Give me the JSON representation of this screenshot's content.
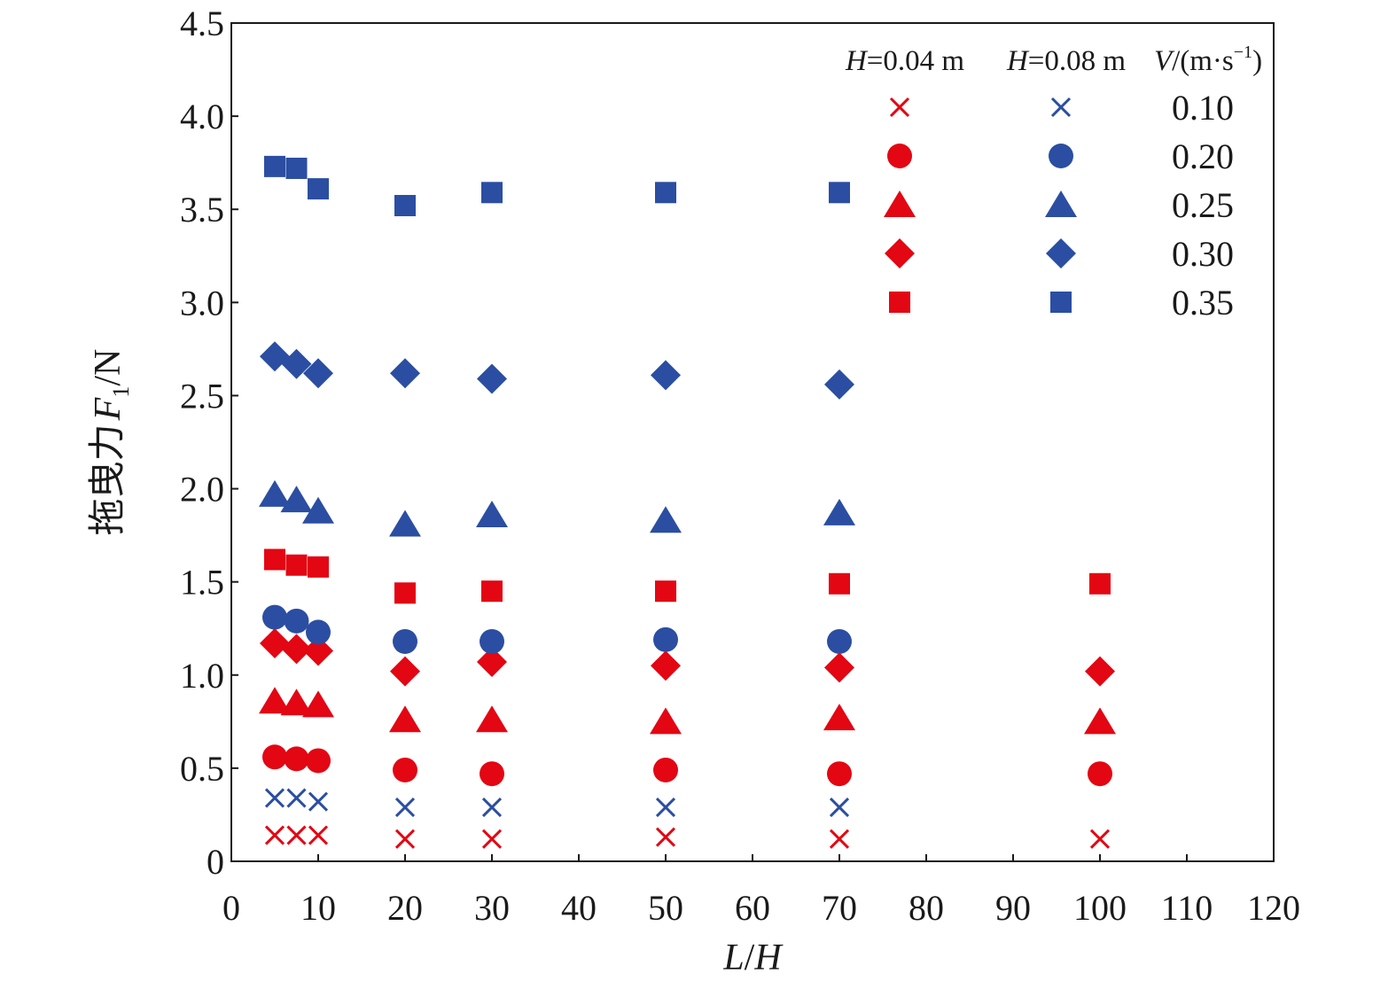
{
  "chart_data": {
    "type": "scatter",
    "xlabel_parts": [
      "L",
      "/",
      "H"
    ],
    "ylabel_parts": [
      "拖曳力",
      "F",
      "1",
      "/N"
    ],
    "xlim": [
      0,
      120
    ],
    "ylim": [
      0,
      4.5
    ],
    "x_ticks": [
      "0",
      "10",
      "20",
      "30",
      "40",
      "50",
      "60",
      "70",
      "80",
      "90",
      "100",
      "110",
      "120"
    ],
    "y_ticks": [
      "0",
      "0.5",
      "1.0",
      "1.5",
      "2.0",
      "2.5",
      "3.0",
      "3.5",
      "4.0",
      "4.5"
    ],
    "grid": false,
    "legend_position": "top-right",
    "legend": {
      "group_headers": [
        {
          "italic": "H",
          "text": "=0.04 m",
          "color": "#e30613"
        },
        {
          "italic": "H",
          "text": "=0.08 m",
          "color": "#2b4ea2"
        },
        {
          "italic": "V",
          "text": "/(m·s",
          "sup": "−1",
          "tail": ")",
          "color": "#1a1a1a"
        }
      ],
      "velocities": [
        "0.10",
        "0.20",
        "0.25",
        "0.30",
        "0.35"
      ]
    },
    "colors": {
      "H_0.04": "#e30613",
      "H_0.08": "#2b4ea2"
    },
    "markers": {
      "0.10": "cross",
      "0.20": "circle",
      "0.25": "triangle",
      "0.30": "diamond",
      "0.35": "square"
    },
    "series": [
      {
        "H": "0.04",
        "V": "0.10",
        "x": [
          5,
          7.5,
          10,
          20,
          30,
          50,
          70,
          100
        ],
        "y": [
          0.14,
          0.14,
          0.14,
          0.12,
          0.12,
          0.13,
          0.12,
          0.12
        ]
      },
      {
        "H": "0.04",
        "V": "0.20",
        "x": [
          5,
          7.5,
          10,
          20,
          30,
          50,
          70,
          100
        ],
        "y": [
          0.56,
          0.55,
          0.54,
          0.49,
          0.47,
          0.49,
          0.47,
          0.47
        ]
      },
      {
        "H": "0.04",
        "V": "0.25",
        "x": [
          5,
          7.5,
          10,
          20,
          30,
          50,
          70,
          100
        ],
        "y": [
          0.86,
          0.85,
          0.84,
          0.76,
          0.76,
          0.75,
          0.77,
          0.75
        ]
      },
      {
        "H": "0.04",
        "V": "0.30",
        "x": [
          5,
          7.5,
          10,
          20,
          30,
          50,
          70,
          100
        ],
        "y": [
          1.17,
          1.14,
          1.13,
          1.02,
          1.07,
          1.05,
          1.04,
          1.02
        ]
      },
      {
        "H": "0.04",
        "V": "0.35",
        "x": [
          5,
          7.5,
          10,
          20,
          30,
          50,
          70,
          100
        ],
        "y": [
          1.62,
          1.59,
          1.58,
          1.44,
          1.45,
          1.45,
          1.49,
          1.49
        ]
      },
      {
        "H": "0.08",
        "V": "0.10",
        "x": [
          5,
          7.5,
          10,
          20,
          30,
          50,
          70
        ],
        "y": [
          0.34,
          0.34,
          0.32,
          0.29,
          0.29,
          0.29,
          0.29
        ]
      },
      {
        "H": "0.08",
        "V": "0.20",
        "x": [
          5,
          7.5,
          10,
          20,
          30,
          50,
          70
        ],
        "y": [
          1.31,
          1.29,
          1.23,
          1.18,
          1.18,
          1.19,
          1.18
        ]
      },
      {
        "H": "0.08",
        "V": "0.25",
        "x": [
          5,
          7.5,
          10,
          20,
          30,
          50,
          70
        ],
        "y": [
          1.97,
          1.94,
          1.88,
          1.81,
          1.86,
          1.83,
          1.87
        ]
      },
      {
        "H": "0.08",
        "V": "0.30",
        "x": [
          5,
          7.5,
          10,
          20,
          30,
          50,
          70
        ],
        "y": [
          2.71,
          2.67,
          2.62,
          2.62,
          2.59,
          2.61,
          2.56
        ]
      },
      {
        "H": "0.08",
        "V": "0.35",
        "x": [
          5,
          7.5,
          10,
          20,
          30,
          50,
          70
        ],
        "y": [
          3.73,
          3.72,
          3.61,
          3.52,
          3.59,
          3.59,
          3.59
        ]
      }
    ]
  }
}
